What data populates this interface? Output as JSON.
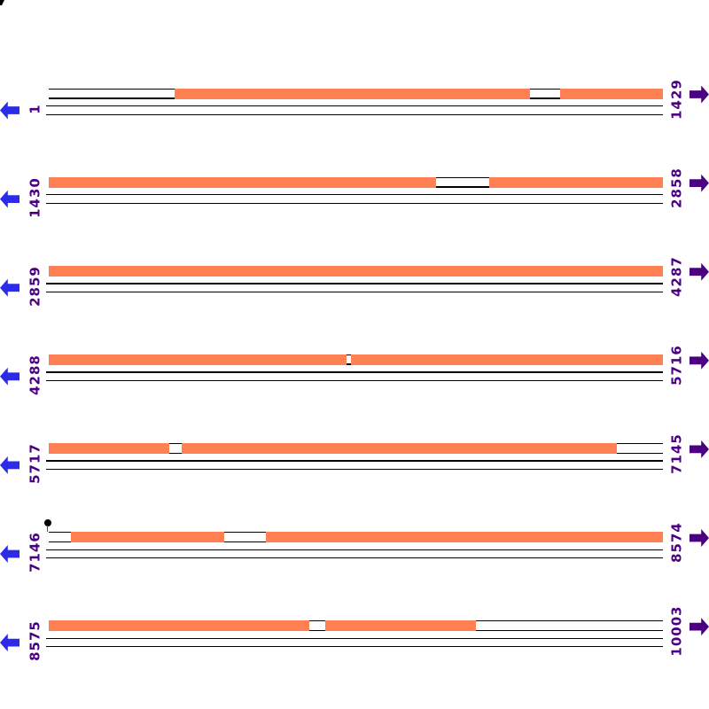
{
  "map": {
    "description": "Linear sequence map, 7 rows of 1429 bp",
    "total_label_first": "1",
    "total_label_last": "10003"
  },
  "colors": {
    "feature": "#FF8052",
    "label_text": "#4B0082",
    "nav_back_arrow": "#2B2BE8",
    "nav_forward_arrow": "#4B0082",
    "ruler_line": "#000000",
    "marker_dot": "#000000",
    "marker_stem": "#CC2200"
  },
  "corner_glyph_fragment": true,
  "rows": [
    {
      "left_label": "1",
      "right_label": "1429",
      "segments": [
        [
          20.5,
          78.4
        ],
        [
          83.3,
          100
        ]
      ],
      "marker": false
    },
    {
      "left_label": "1430",
      "right_label": "2858",
      "segments": [
        [
          0,
          63.1
        ],
        [
          71.7,
          100
        ]
      ],
      "marker": false
    },
    {
      "left_label": "2859",
      "right_label": "4287",
      "segments": [
        [
          0,
          100
        ]
      ],
      "marker": false
    },
    {
      "left_label": "4288",
      "right_label": "5716",
      "segments": [
        [
          0,
          48.5
        ],
        [
          49.2,
          100
        ]
      ],
      "marker": false
    },
    {
      "left_label": "5717",
      "right_label": "7145",
      "segments": [
        [
          0,
          19.6
        ],
        [
          21.6,
          92.5
        ]
      ],
      "marker": false
    },
    {
      "left_label": "7146",
      "right_label": "8574",
      "segments": [
        [
          3.6,
          28.6
        ],
        [
          35.4,
          100
        ]
      ],
      "marker": true
    },
    {
      "left_label": "8575",
      "right_label": "10003",
      "segments": [
        [
          0,
          42.4
        ],
        [
          45.0,
          69.6
        ]
      ],
      "marker": false
    }
  ]
}
